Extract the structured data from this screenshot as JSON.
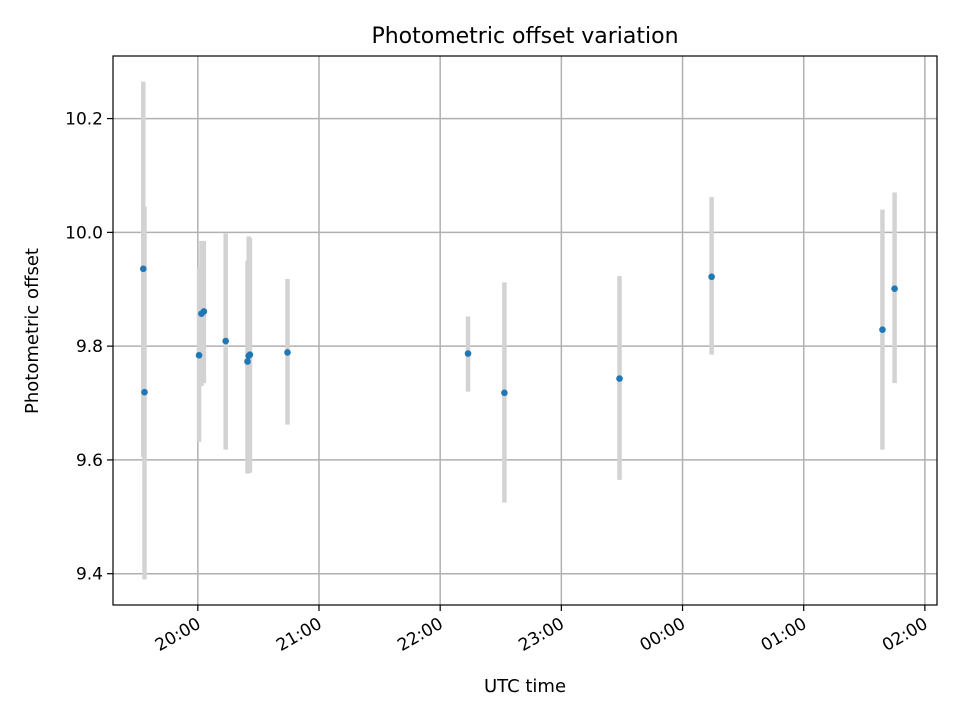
{
  "chart_data": {
    "type": "scatter",
    "title": "Photometric offset variation",
    "xlabel": "UTC time",
    "ylabel": "Photometric offset",
    "x_ticks": [
      "20:00",
      "21:00",
      "22:00",
      "23:00",
      "00:00",
      "01:00",
      "02:00"
    ],
    "y_ticks": [
      "9.4",
      "9.6",
      "9.8",
      "10.0",
      "10.2"
    ],
    "xlim_hours": [
      19.3,
      26.1
    ],
    "ylim": [
      9.345,
      10.31
    ],
    "grid": true,
    "colors": {
      "point": "#1f77b4",
      "errorbar": "#d3d3d3",
      "grid": "#b0b0b0"
    },
    "points": [
      {
        "x_hours": 19.55,
        "y": 9.936,
        "ylo": 9.605,
        "yhi": 10.265
      },
      {
        "x_hours": 19.56,
        "y": 9.719,
        "ylo": 9.39,
        "yhi": 10.045
      },
      {
        "x_hours": 20.01,
        "y": 9.784,
        "ylo": 9.632,
        "yhi": 9.937
      },
      {
        "x_hours": 20.03,
        "y": 9.857,
        "ylo": 9.73,
        "yhi": 9.985
      },
      {
        "x_hours": 20.05,
        "y": 9.861,
        "ylo": 9.735,
        "yhi": 9.985
      },
      {
        "x_hours": 20.23,
        "y": 9.809,
        "ylo": 9.618,
        "yhi": 9.998
      },
      {
        "x_hours": 20.41,
        "y": 9.773,
        "ylo": 9.576,
        "yhi": 9.95
      },
      {
        "x_hours": 20.42,
        "y": 9.783,
        "ylo": 9.577,
        "yhi": 9.993
      },
      {
        "x_hours": 20.43,
        "y": 9.785,
        "ylo": 9.578,
        "yhi": 9.99
      },
      {
        "x_hours": 20.74,
        "y": 9.789,
        "ylo": 9.662,
        "yhi": 9.918
      },
      {
        "x_hours": 22.23,
        "y": 9.787,
        "ylo": 9.72,
        "yhi": 9.852
      },
      {
        "x_hours": 22.53,
        "y": 9.718,
        "ylo": 9.525,
        "yhi": 9.912
      },
      {
        "x_hours": 23.48,
        "y": 9.743,
        "ylo": 9.565,
        "yhi": 9.923
      },
      {
        "x_hours": 24.24,
        "y": 9.922,
        "ylo": 9.785,
        "yhi": 10.062
      },
      {
        "x_hours": 25.65,
        "y": 9.829,
        "ylo": 9.618,
        "yhi": 10.04
      },
      {
        "x_hours": 25.75,
        "y": 9.901,
        "ylo": 9.735,
        "yhi": 10.07
      }
    ]
  }
}
